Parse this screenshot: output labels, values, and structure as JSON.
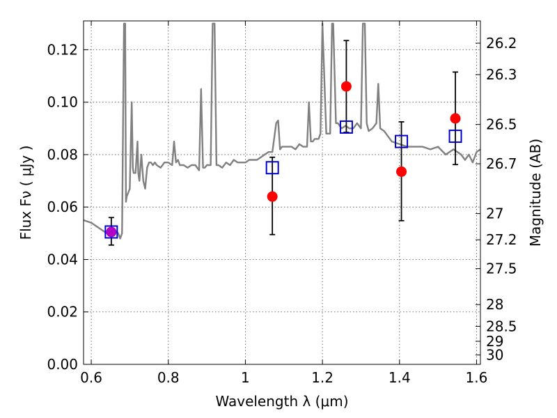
{
  "chart_data": {
    "type": "scatter",
    "xlabel": "Wavelength  λ (μm)",
    "ylabel": "Flux  Fν  ( μJy )",
    "ylabel_right": "Magnitude (AB)",
    "xlim": [
      0.58,
      1.61
    ],
    "ylim": [
      0.0,
      0.131
    ],
    "grid": true,
    "x_ticks": [
      0.6,
      0.8,
      1.0,
      1.2,
      1.4,
      1.6
    ],
    "x_tick_labels": [
      "0.6",
      "0.8",
      "1",
      "1.2",
      "1.4",
      "1.6"
    ],
    "y_ticks": [
      0.0,
      0.02,
      0.04,
      0.06,
      0.08,
      0.1,
      0.12
    ],
    "y_tick_labels": [
      "0.00",
      "0.02",
      "0.04",
      "0.06",
      "0.08",
      "0.10",
      "0.12"
    ],
    "right_ticks": [
      {
        "flux": 0.1225,
        "label": "26.2"
      },
      {
        "flux": 0.1105,
        "label": "26.3"
      },
      {
        "flux": 0.0915,
        "label": "26.5"
      },
      {
        "flux": 0.0765,
        "label": "26.7"
      },
      {
        "flux": 0.0575,
        "label": "27"
      },
      {
        "flux": 0.0475,
        "label": "27.2"
      },
      {
        "flux": 0.0365,
        "label": "27.5"
      },
      {
        "flux": 0.0228,
        "label": "28"
      },
      {
        "flux": 0.0145,
        "label": "28.5"
      },
      {
        "flux": 0.0088,
        "label": "29"
      },
      {
        "flux": 0.0036,
        "label": "30"
      }
    ],
    "series": [
      {
        "kind": "line",
        "color": "#808080",
        "x": [
          0.58,
          0.6,
          0.62,
          0.64,
          0.65,
          0.66,
          0.67,
          0.675,
          0.68,
          0.685,
          0.688,
          0.69,
          0.692,
          0.7,
          0.705,
          0.708,
          0.71,
          0.713,
          0.715,
          0.72,
          0.722,
          0.725,
          0.73,
          0.735,
          0.74,
          0.745,
          0.75,
          0.755,
          0.76,
          0.765,
          0.77,
          0.78,
          0.79,
          0.8,
          0.81,
          0.815,
          0.82,
          0.825,
          0.83,
          0.84,
          0.85,
          0.86,
          0.87,
          0.88,
          0.885,
          0.89,
          0.895,
          0.9,
          0.91,
          0.915,
          0.92,
          0.925,
          0.93,
          0.94,
          0.95,
          0.96,
          0.97,
          0.98,
          0.99,
          1.0,
          1.01,
          1.02,
          1.03,
          1.04,
          1.05,
          1.06,
          1.07,
          1.08,
          1.085,
          1.09,
          1.095,
          1.1,
          1.11,
          1.12,
          1.13,
          1.14,
          1.15,
          1.16,
          1.165,
          1.17,
          1.175,
          1.18,
          1.19,
          1.195,
          1.2,
          1.21,
          1.22,
          1.225,
          1.228,
          1.235,
          1.24,
          1.25,
          1.26,
          1.27,
          1.28,
          1.29,
          1.3,
          1.305,
          1.31,
          1.315,
          1.32,
          1.33,
          1.34,
          1.345,
          1.35,
          1.36,
          1.38,
          1.4,
          1.42,
          1.44,
          1.46,
          1.48,
          1.5,
          1.52,
          1.54,
          1.56,
          1.57,
          1.58,
          1.59,
          1.6,
          1.61
        ],
        "y": [
          0.055,
          0.054,
          0.052,
          0.05,
          0.051,
          0.051,
          0.05,
          0.048,
          0.05,
          0.13,
          0.13,
          0.062,
          0.064,
          0.067,
          0.1,
          0.075,
          0.073,
          0.073,
          0.073,
          0.085,
          0.073,
          0.07,
          0.08,
          0.07,
          0.067,
          0.075,
          0.077,
          0.077,
          0.076,
          0.077,
          0.076,
          0.075,
          0.077,
          0.077,
          0.076,
          0.085,
          0.077,
          0.078,
          0.076,
          0.076,
          0.075,
          0.076,
          0.076,
          0.074,
          0.105,
          0.075,
          0.075,
          0.076,
          0.076,
          0.13,
          0.13,
          0.076,
          0.076,
          0.075,
          0.077,
          0.076,
          0.078,
          0.077,
          0.077,
          0.077,
          0.078,
          0.078,
          0.078,
          0.079,
          0.08,
          0.081,
          0.081,
          0.092,
          0.093,
          0.082,
          0.083,
          0.083,
          0.083,
          0.083,
          0.082,
          0.084,
          0.083,
          0.083,
          0.1,
          0.085,
          0.085,
          0.086,
          0.086,
          0.088,
          0.13,
          0.088,
          0.088,
          0.13,
          0.13,
          0.092,
          0.092,
          0.09,
          0.091,
          0.09,
          0.09,
          0.092,
          0.09,
          0.13,
          0.13,
          0.092,
          0.089,
          0.09,
          0.092,
          0.107,
          0.09,
          0.089,
          0.085,
          0.084,
          0.083,
          0.083,
          0.083,
          0.082,
          0.083,
          0.08,
          0.082,
          0.08,
          0.078,
          0.08,
          0.077,
          0.081,
          0.082
        ]
      },
      {
        "kind": "points",
        "marker": "circle",
        "color": "#ff0000",
        "x": [
          0.652,
          1.07,
          1.262,
          1.405,
          1.545
        ],
        "y": [
          0.0505,
          0.064,
          0.106,
          0.0735,
          0.0938
        ]
      },
      {
        "kind": "points",
        "marker": "square",
        "color": "#0000cc",
        "x": [
          0.652,
          1.07,
          1.262,
          1.405,
          1.545
        ],
        "y": [
          0.0505,
          0.075,
          0.0905,
          0.085,
          0.087
        ],
        "err_low": [
          0.0455,
          0.0495,
          0.0885,
          0.0548,
          0.0762
        ],
        "err_high": [
          0.056,
          0.079,
          0.1235,
          0.0925,
          0.1115
        ]
      }
    ]
  }
}
